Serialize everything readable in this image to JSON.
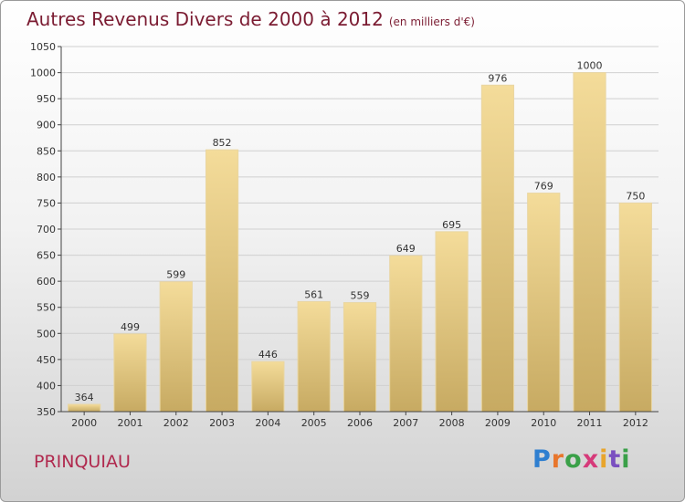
{
  "header": {
    "title": "Autres Revenus Divers de 2000 à 2012",
    "unit": "(en milliers d'€)"
  },
  "footer": {
    "town": "PRINQUIAU",
    "brand_letters": [
      "P",
      "r",
      "o",
      "x",
      "i",
      "t",
      "i"
    ],
    "brand_colors": [
      "#2f7fd0",
      "#e8762c",
      "#3aa048",
      "#d63a7a",
      "#e8a52c",
      "#7a4fc0",
      "#3aa048"
    ]
  },
  "colors": {
    "title": "#7b1c32",
    "town": "#b0294e",
    "bar_top": "#f4dc9a",
    "bar_bottom": "#c7aa62",
    "axis": "#444444",
    "grid": "#d0d0d0"
  },
  "chart_data": {
    "type": "bar",
    "categories": [
      "2000",
      "2001",
      "2002",
      "2003",
      "2004",
      "2005",
      "2006",
      "2007",
      "2008",
      "2009",
      "2010",
      "2011",
      "2012"
    ],
    "values": [
      364,
      499,
      599,
      852,
      446,
      561,
      559,
      649,
      695,
      976,
      769,
      1000,
      750
    ],
    "data_labels": [
      "364",
      "499",
      "599",
      "852",
      "446",
      "561",
      "559",
      "649",
      "695",
      "976",
      "769",
      "1000",
      "750"
    ],
    "ylim": [
      350,
      1050
    ],
    "yticks": [
      350,
      400,
      450,
      500,
      550,
      600,
      650,
      700,
      750,
      800,
      850,
      900,
      950,
      1000,
      1050
    ],
    "ytick_labels": [
      "350",
      "400",
      "450",
      "500",
      "550",
      "600",
      "650",
      "700",
      "750",
      "800",
      "850",
      "900",
      "950",
      "1000",
      "1050"
    ],
    "grid": true,
    "legend": false
  }
}
